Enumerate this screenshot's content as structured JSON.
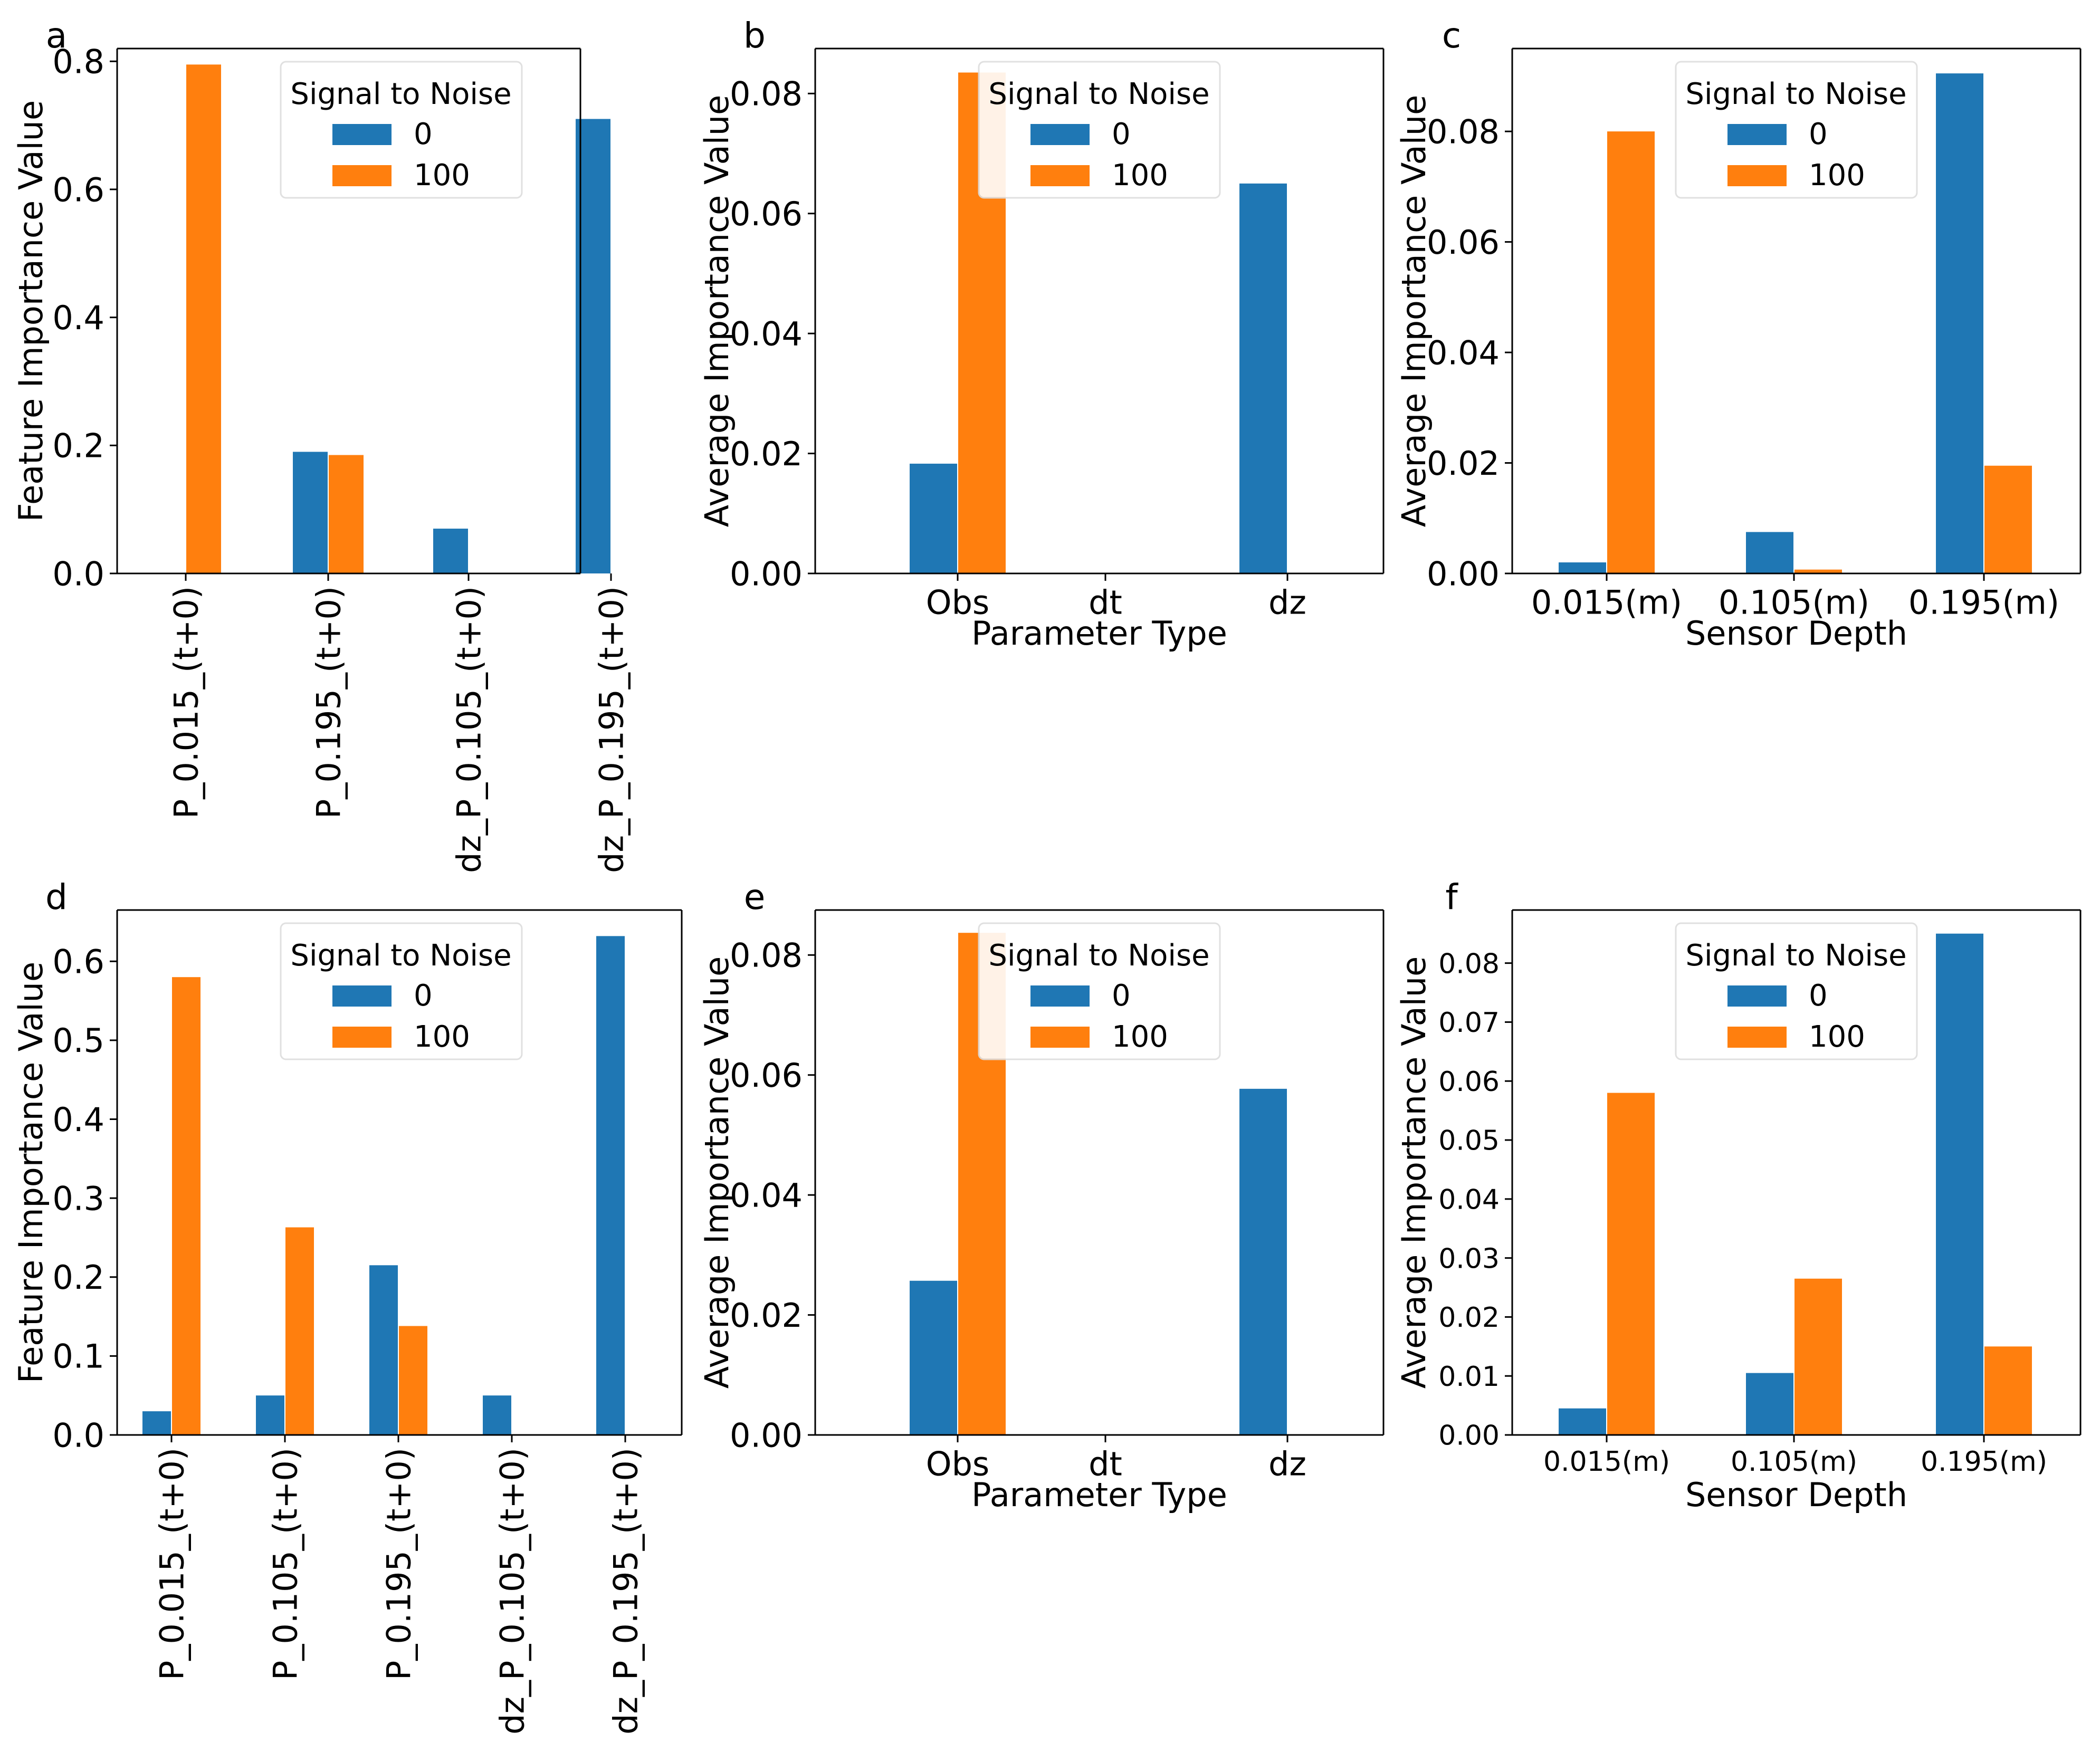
{
  "colors": {
    "series_0": "#1f77b4",
    "series_100": "#ff7f0e"
  },
  "chart_data": [
    {
      "type": "bar",
      "panel_label": "a",
      "ylabel": "Feature Importance Value",
      "xlabel": "",
      "ylim": [
        0,
        0.82
      ],
      "yticks": [
        "0.0",
        "0.2",
        "0.4",
        "0.6",
        "0.8"
      ],
      "ytick_values": [
        0,
        0.2,
        0.4,
        0.6,
        0.8
      ],
      "categories": [
        "P_0.015_(t+0)",
        "P_0.195_(t+0)",
        "dz_P_0.105_(t+0)",
        "dz_P_0.195_(t+0)"
      ],
      "legend": {
        "title": "Signal to Noise",
        "position": "top-center"
      },
      "series": [
        {
          "name": "0",
          "values": [
            0.0,
            0.19,
            0.07,
            0.71
          ]
        },
        {
          "name": "100",
          "values": [
            0.795,
            0.185,
            0.0,
            0.0
          ]
        }
      ]
    },
    {
      "type": "bar",
      "panel_label": "b",
      "ylabel": "Average Importance Value",
      "xlabel": "Parameter Type",
      "ylim": [
        0,
        0.0875
      ],
      "yticks": [
        "0.00",
        "0.02",
        "0.04",
        "0.06",
        "0.08"
      ],
      "ytick_values": [
        0,
        0.02,
        0.04,
        0.06,
        0.08
      ],
      "categories": [
        "Obs",
        "dt",
        "dz"
      ],
      "legend": {
        "title": "Signal to Noise",
        "position": "top-center"
      },
      "series": [
        {
          "name": "0",
          "values": [
            0.0183,
            0.0,
            0.065
          ]
        },
        {
          "name": "100",
          "values": [
            0.0835,
            0.0,
            0.0
          ]
        }
      ]
    },
    {
      "type": "bar",
      "panel_label": "c",
      "ylabel": "Average Importance Value",
      "xlabel": "Sensor Depth",
      "ylim": [
        0,
        0.095
      ],
      "yticks": [
        "0.00",
        "0.02",
        "0.04",
        "0.06",
        "0.08"
      ],
      "ytick_values": [
        0,
        0.02,
        0.04,
        0.06,
        0.08
      ],
      "categories": [
        "0.015(m)",
        "0.105(m)",
        "0.195(m)"
      ],
      "legend": {
        "title": "Signal to Noise",
        "position": "top-center"
      },
      "series": [
        {
          "name": "0",
          "values": [
            0.002,
            0.0075,
            0.0905
          ]
        },
        {
          "name": "100",
          "values": [
            0.08,
            0.0007,
            0.0195
          ]
        }
      ]
    },
    {
      "type": "bar",
      "panel_label": "d",
      "ylabel": "Feature Importance Value",
      "xlabel": "",
      "ylim": [
        0,
        0.665
      ],
      "yticks": [
        "0.0",
        "0.1",
        "0.2",
        "0.3",
        "0.4",
        "0.5",
        "0.6"
      ],
      "ytick_values": [
        0,
        0.1,
        0.2,
        0.3,
        0.4,
        0.5,
        0.6
      ],
      "categories": [
        "P_0.015_(t+0)",
        "P_0.105_(t+0)",
        "P_0.195_(t+0)",
        "dz_P_0.105_(t+0)",
        "dz_P_0.195_(t+0)"
      ],
      "legend": {
        "title": "Signal to Noise",
        "position": "top-center"
      },
      "series": [
        {
          "name": "0",
          "values": [
            0.03,
            0.05,
            0.215,
            0.05,
            0.632
          ]
        },
        {
          "name": "100",
          "values": [
            0.58,
            0.263,
            0.138,
            0.0,
            0.0
          ]
        }
      ]
    },
    {
      "type": "bar",
      "panel_label": "e",
      "ylabel": "Average Importance Value",
      "xlabel": "Parameter Type",
      "ylim": [
        0,
        0.0875
      ],
      "yticks": [
        "0.00",
        "0.02",
        "0.04",
        "0.06",
        "0.08"
      ],
      "ytick_values": [
        0,
        0.02,
        0.04,
        0.06,
        0.08
      ],
      "categories": [
        "Obs",
        "dt",
        "dz"
      ],
      "legend": {
        "title": "Signal to Noise",
        "position": "top-center"
      },
      "series": [
        {
          "name": "0",
          "values": [
            0.0257,
            0.0,
            0.0577
          ]
        },
        {
          "name": "100",
          "values": [
            0.0837,
            0.0,
            0.0
          ]
        }
      ]
    },
    {
      "type": "bar",
      "panel_label": "f",
      "ylabel": "Average Importance Value",
      "xlabel": "Sensor Depth",
      "ylim": [
        0,
        0.089
      ],
      "yticks": [
        "0.00",
        "0.01",
        "0.02",
        "0.03",
        "0.04",
        "0.05",
        "0.06",
        "0.07",
        "0.08"
      ],
      "ytick_values": [
        0,
        0.01,
        0.02,
        0.03,
        0.04,
        0.05,
        0.06,
        0.07,
        0.08
      ],
      "categories": [
        "0.015(m)",
        "0.105(m)",
        "0.195(m)"
      ],
      "legend": {
        "title": "Signal to Noise",
        "position": "top-center"
      },
      "series": [
        {
          "name": "0",
          "values": [
            0.0045,
            0.0105,
            0.085
          ]
        },
        {
          "name": "100",
          "values": [
            0.058,
            0.0265,
            0.015
          ]
        }
      ]
    }
  ]
}
